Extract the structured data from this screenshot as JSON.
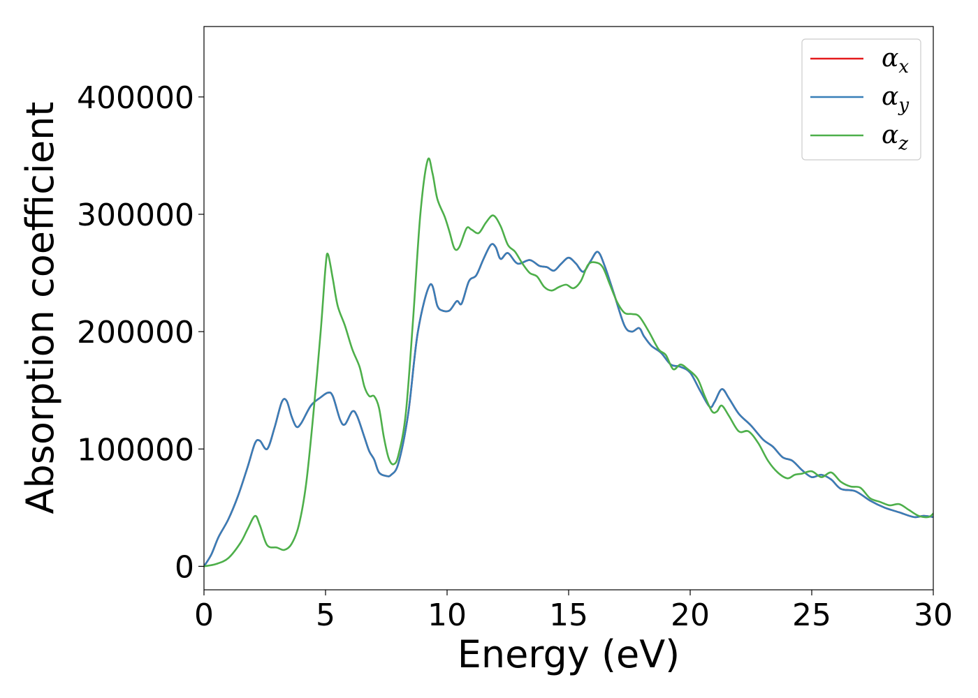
{
  "chart_data": {
    "type": "line",
    "title": "",
    "xlabel": "Energy (eV)",
    "ylabel": "Absorption coefficient",
    "xlim": [
      0,
      30
    ],
    "ylim": [
      -20000,
      460000
    ],
    "xticks": [
      0,
      5,
      10,
      15,
      20,
      25,
      30
    ],
    "yticks": [
      0,
      100000,
      200000,
      300000,
      400000
    ],
    "grid": false,
    "legend_position": "top-right",
    "series": [
      {
        "name": "α",
        "subscript": "x",
        "color": "#e41a1c",
        "points": [
          [
            0,
            0
          ],
          [
            0.3,
            10000
          ],
          [
            0.6,
            25000
          ],
          [
            1.0,
            40000
          ],
          [
            1.4,
            60000
          ],
          [
            1.8,
            85000
          ],
          [
            2.1,
            105000
          ],
          [
            2.3,
            107000
          ],
          [
            2.6,
            100000
          ],
          [
            2.9,
            118000
          ],
          [
            3.2,
            140000
          ],
          [
            3.4,
            141000
          ],
          [
            3.6,
            128000
          ],
          [
            3.8,
            119000
          ],
          [
            4.0,
            122000
          ],
          [
            4.4,
            137000
          ],
          [
            4.8,
            144000
          ],
          [
            5.1,
            148000
          ],
          [
            5.3,
            145000
          ],
          [
            5.6,
            125000
          ],
          [
            5.8,
            121000
          ],
          [
            6.1,
            132000
          ],
          [
            6.3,
            128000
          ],
          [
            6.6,
            110000
          ],
          [
            6.8,
            98000
          ],
          [
            7.0,
            91000
          ],
          [
            7.2,
            80000
          ],
          [
            7.5,
            77000
          ],
          [
            7.7,
            78000
          ],
          [
            8.0,
            88000
          ],
          [
            8.4,
            130000
          ],
          [
            8.8,
            200000
          ],
          [
            9.3,
            240000
          ],
          [
            9.6,
            222000
          ],
          [
            9.8,
            218000
          ],
          [
            10.1,
            218000
          ],
          [
            10.4,
            226000
          ],
          [
            10.6,
            224000
          ],
          [
            10.9,
            243000
          ],
          [
            11.2,
            248000
          ],
          [
            11.5,
            262000
          ],
          [
            11.8,
            274000
          ],
          [
            12.0,
            272000
          ],
          [
            12.2,
            262000
          ],
          [
            12.5,
            267000
          ],
          [
            12.9,
            258000
          ],
          [
            13.4,
            261000
          ],
          [
            13.8,
            256000
          ],
          [
            14.1,
            255000
          ],
          [
            14.4,
            252000
          ],
          [
            14.7,
            258000
          ],
          [
            15.0,
            263000
          ],
          [
            15.3,
            258000
          ],
          [
            15.6,
            251000
          ],
          [
            15.9,
            260000
          ],
          [
            16.2,
            268000
          ],
          [
            16.5,
            255000
          ],
          [
            16.9,
            230000
          ],
          [
            17.3,
            205000
          ],
          [
            17.6,
            200000
          ],
          [
            17.9,
            203000
          ],
          [
            18.1,
            196000
          ],
          [
            18.4,
            188000
          ],
          [
            18.8,
            182000
          ],
          [
            19.2,
            172000
          ],
          [
            19.6,
            170000
          ],
          [
            20.0,
            165000
          ],
          [
            20.4,
            150000
          ],
          [
            20.8,
            136000
          ],
          [
            21.0,
            140000
          ],
          [
            21.3,
            151000
          ],
          [
            21.6,
            143000
          ],
          [
            22.0,
            130000
          ],
          [
            22.5,
            120000
          ],
          [
            23.0,
            108000
          ],
          [
            23.4,
            102000
          ],
          [
            23.8,
            93000
          ],
          [
            24.2,
            90000
          ],
          [
            24.6,
            82000
          ],
          [
            25.0,
            76000
          ],
          [
            25.4,
            78000
          ],
          [
            25.8,
            74000
          ],
          [
            26.2,
            66000
          ],
          [
            26.8,
            64000
          ],
          [
            27.4,
            56000
          ],
          [
            28.0,
            50000
          ],
          [
            28.6,
            46000
          ],
          [
            29.2,
            42000
          ],
          [
            29.6,
            43000
          ],
          [
            30.0,
            42000
          ]
        ]
      },
      {
        "name": "α",
        "subscript": "y",
        "color": "#377eb8",
        "points": [
          [
            0,
            0
          ],
          [
            0.3,
            10000
          ],
          [
            0.6,
            25000
          ],
          [
            1.0,
            40000
          ],
          [
            1.4,
            60000
          ],
          [
            1.8,
            85000
          ],
          [
            2.1,
            105000
          ],
          [
            2.3,
            107000
          ],
          [
            2.6,
            100000
          ],
          [
            2.9,
            118000
          ],
          [
            3.2,
            140000
          ],
          [
            3.4,
            141000
          ],
          [
            3.6,
            128000
          ],
          [
            3.8,
            119000
          ],
          [
            4.0,
            122000
          ],
          [
            4.4,
            137000
          ],
          [
            4.8,
            144000
          ],
          [
            5.1,
            148000
          ],
          [
            5.3,
            145000
          ],
          [
            5.6,
            125000
          ],
          [
            5.8,
            121000
          ],
          [
            6.1,
            132000
          ],
          [
            6.3,
            128000
          ],
          [
            6.6,
            110000
          ],
          [
            6.8,
            98000
          ],
          [
            7.0,
            91000
          ],
          [
            7.2,
            80000
          ],
          [
            7.5,
            77000
          ],
          [
            7.7,
            78000
          ],
          [
            8.0,
            88000
          ],
          [
            8.4,
            130000
          ],
          [
            8.8,
            200000
          ],
          [
            9.3,
            240000
          ],
          [
            9.6,
            222000
          ],
          [
            9.8,
            218000
          ],
          [
            10.1,
            218000
          ],
          [
            10.4,
            226000
          ],
          [
            10.6,
            224000
          ],
          [
            10.9,
            243000
          ],
          [
            11.2,
            248000
          ],
          [
            11.5,
            262000
          ],
          [
            11.8,
            274000
          ],
          [
            12.0,
            272000
          ],
          [
            12.2,
            262000
          ],
          [
            12.5,
            267000
          ],
          [
            12.9,
            258000
          ],
          [
            13.4,
            261000
          ],
          [
            13.8,
            256000
          ],
          [
            14.1,
            255000
          ],
          [
            14.4,
            252000
          ],
          [
            14.7,
            258000
          ],
          [
            15.0,
            263000
          ],
          [
            15.3,
            258000
          ],
          [
            15.6,
            251000
          ],
          [
            15.9,
            260000
          ],
          [
            16.2,
            268000
          ],
          [
            16.5,
            255000
          ],
          [
            16.9,
            230000
          ],
          [
            17.3,
            205000
          ],
          [
            17.6,
            200000
          ],
          [
            17.9,
            203000
          ],
          [
            18.1,
            196000
          ],
          [
            18.4,
            188000
          ],
          [
            18.8,
            182000
          ],
          [
            19.2,
            172000
          ],
          [
            19.6,
            170000
          ],
          [
            20.0,
            165000
          ],
          [
            20.4,
            150000
          ],
          [
            20.8,
            136000
          ],
          [
            21.0,
            140000
          ],
          [
            21.3,
            151000
          ],
          [
            21.6,
            143000
          ],
          [
            22.0,
            130000
          ],
          [
            22.5,
            120000
          ],
          [
            23.0,
            108000
          ],
          [
            23.4,
            102000
          ],
          [
            23.8,
            93000
          ],
          [
            24.2,
            90000
          ],
          [
            24.6,
            82000
          ],
          [
            25.0,
            76000
          ],
          [
            25.4,
            78000
          ],
          [
            25.8,
            74000
          ],
          [
            26.2,
            66000
          ],
          [
            26.8,
            64000
          ],
          [
            27.4,
            56000
          ],
          [
            28.0,
            50000
          ],
          [
            28.6,
            46000
          ],
          [
            29.2,
            42000
          ],
          [
            29.6,
            43000
          ],
          [
            30.0,
            42000
          ]
        ]
      },
      {
        "name": "α",
        "subscript": "z",
        "color": "#4daf4a",
        "points": [
          [
            0,
            0
          ],
          [
            0.5,
            2000
          ],
          [
            1.0,
            7000
          ],
          [
            1.5,
            20000
          ],
          [
            1.8,
            32000
          ],
          [
            2.1,
            43000
          ],
          [
            2.3,
            35000
          ],
          [
            2.6,
            18000
          ],
          [
            3.0,
            16000
          ],
          [
            3.3,
            14000
          ],
          [
            3.6,
            19000
          ],
          [
            3.9,
            35000
          ],
          [
            4.2,
            70000
          ],
          [
            4.5,
            130000
          ],
          [
            4.8,
            200000
          ],
          [
            5.0,
            255000
          ],
          [
            5.1,
            266000
          ],
          [
            5.3,
            245000
          ],
          [
            5.5,
            222000
          ],
          [
            5.8,
            205000
          ],
          [
            6.1,
            185000
          ],
          [
            6.4,
            170000
          ],
          [
            6.6,
            153000
          ],
          [
            6.8,
            145000
          ],
          [
            7.0,
            145000
          ],
          [
            7.2,
            135000
          ],
          [
            7.4,
            110000
          ],
          [
            7.6,
            92000
          ],
          [
            7.8,
            87000
          ],
          [
            8.0,
            95000
          ],
          [
            8.3,
            130000
          ],
          [
            8.6,
            210000
          ],
          [
            8.9,
            300000
          ],
          [
            9.2,
            346000
          ],
          [
            9.4,
            335000
          ],
          [
            9.6,
            313000
          ],
          [
            9.9,
            298000
          ],
          [
            10.1,
            285000
          ],
          [
            10.3,
            271000
          ],
          [
            10.5,
            272000
          ],
          [
            10.8,
            288000
          ],
          [
            11.0,
            287000
          ],
          [
            11.3,
            284000
          ],
          [
            11.6,
            293000
          ],
          [
            11.9,
            299000
          ],
          [
            12.2,
            290000
          ],
          [
            12.5,
            274000
          ],
          [
            12.8,
            268000
          ],
          [
            13.1,
            258000
          ],
          [
            13.4,
            250000
          ],
          [
            13.7,
            247000
          ],
          [
            14.0,
            238000
          ],
          [
            14.3,
            235000
          ],
          [
            14.6,
            238000
          ],
          [
            14.9,
            240000
          ],
          [
            15.2,
            237000
          ],
          [
            15.5,
            243000
          ],
          [
            15.8,
            257000
          ],
          [
            16.1,
            259000
          ],
          [
            16.4,
            255000
          ],
          [
            16.7,
            240000
          ],
          [
            17.0,
            225000
          ],
          [
            17.3,
            216000
          ],
          [
            17.6,
            215000
          ],
          [
            17.9,
            213000
          ],
          [
            18.3,
            200000
          ],
          [
            18.7,
            185000
          ],
          [
            19.0,
            180000
          ],
          [
            19.3,
            168000
          ],
          [
            19.6,
            172000
          ],
          [
            19.9,
            168000
          ],
          [
            20.3,
            160000
          ],
          [
            20.6,
            145000
          ],
          [
            20.9,
            132000
          ],
          [
            21.1,
            132000
          ],
          [
            21.3,
            137000
          ],
          [
            21.6,
            128000
          ],
          [
            22.0,
            115000
          ],
          [
            22.4,
            115000
          ],
          [
            22.8,
            105000
          ],
          [
            23.2,
            90000
          ],
          [
            23.6,
            80000
          ],
          [
            24.0,
            75000
          ],
          [
            24.3,
            78000
          ],
          [
            24.6,
            79000
          ],
          [
            25.0,
            81000
          ],
          [
            25.4,
            76000
          ],
          [
            25.8,
            80000
          ],
          [
            26.2,
            72000
          ],
          [
            26.6,
            68000
          ],
          [
            27.0,
            67000
          ],
          [
            27.4,
            58000
          ],
          [
            27.8,
            55000
          ],
          [
            28.2,
            52000
          ],
          [
            28.6,
            53000
          ],
          [
            29.0,
            48000
          ],
          [
            29.4,
            43000
          ],
          [
            29.8,
            42000
          ],
          [
            30.0,
            45000
          ]
        ]
      }
    ]
  }
}
